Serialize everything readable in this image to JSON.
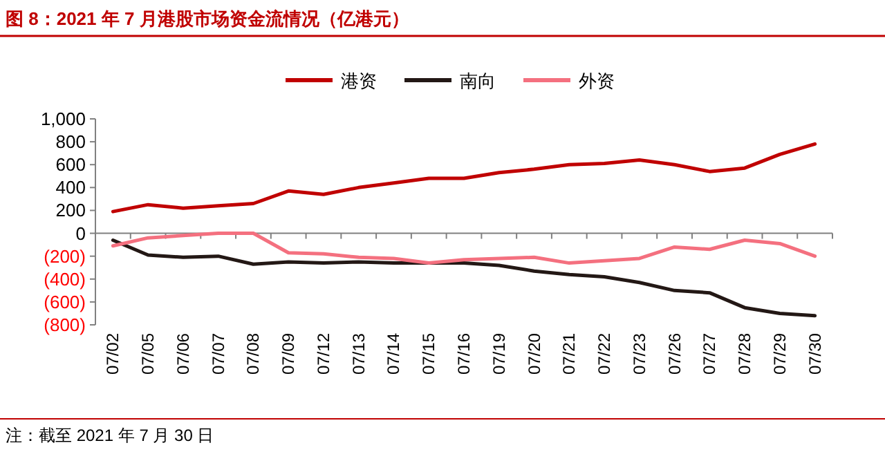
{
  "chart_data": {
    "type": "line",
    "title": "图 8：2021 年 7 月港股市场资金流情况（亿港元）",
    "categories": [
      "07/02",
      "07/05",
      "07/06",
      "07/07",
      "07/08",
      "07/09",
      "07/12",
      "07/13",
      "07/14",
      "07/15",
      "07/16",
      "07/19",
      "07/20",
      "07/21",
      "07/22",
      "07/23",
      "07/26",
      "07/27",
      "07/28",
      "07/29",
      "07/30"
    ],
    "series": [
      {
        "name": "港资",
        "color": "#c00000",
        "values": [
          190,
          250,
          220,
          240,
          260,
          370,
          340,
          400,
          440,
          480,
          480,
          530,
          560,
          600,
          610,
          640,
          600,
          540,
          570,
          690,
          780
        ]
      },
      {
        "name": "南向",
        "color": "#231815",
        "values": [
          -60,
          -190,
          -210,
          -200,
          -270,
          -250,
          -260,
          -250,
          -260,
          -260,
          -260,
          -280,
          -330,
          -360,
          -380,
          -430,
          -500,
          -520,
          -650,
          -700,
          -720
        ]
      },
      {
        "name": "外资",
        "color": "#f4707f",
        "values": [
          -110,
          -40,
          -20,
          0,
          0,
          -170,
          -180,
          -210,
          -220,
          -260,
          -230,
          -220,
          -210,
          -260,
          -240,
          -220,
          -120,
          -140,
          -60,
          -90,
          -200
        ]
      }
    ],
    "ylim": [
      -800,
      1000
    ],
    "yticks": [
      {
        "value": -800,
        "label": "(800)"
      },
      {
        "value": -600,
        "label": "(600)"
      },
      {
        "value": -400,
        "label": "(400)"
      },
      {
        "value": -200,
        "label": "(200)"
      },
      0,
      200,
      400,
      600,
      800,
      {
        "value": 1000,
        "label": "1,000"
      }
    ],
    "legend": "top",
    "marker": "none",
    "line_style": "solid",
    "annotations": [
      "注：截至 2021 年 7 月 30 日"
    ]
  }
}
